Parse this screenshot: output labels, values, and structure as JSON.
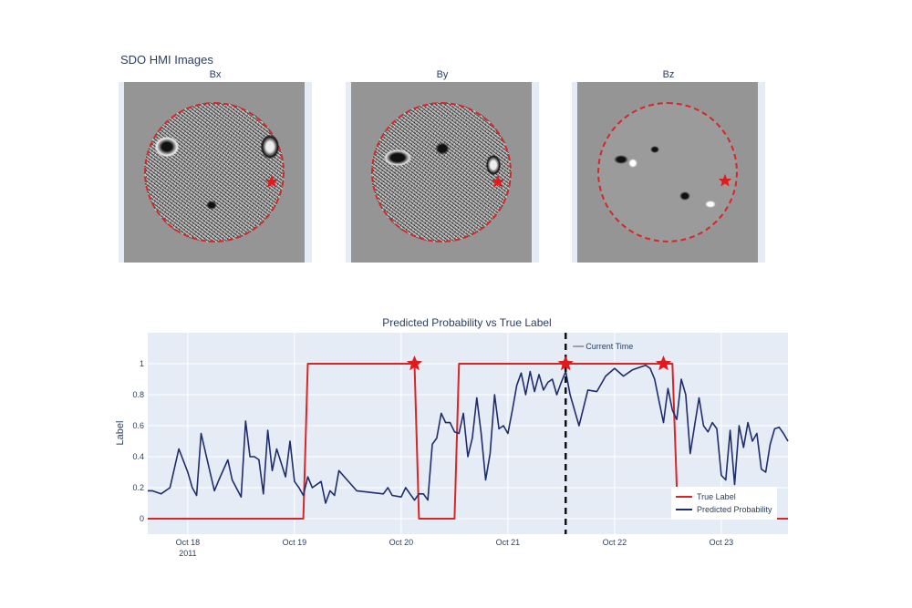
{
  "images_section": {
    "title": "SDO HMI Images",
    "panels": [
      {
        "title": "Bx",
        "style": "noisy"
      },
      {
        "title": "By",
        "style": "noisy"
      },
      {
        "title": "Bz",
        "style": "smooth"
      }
    ],
    "limb_circle_color": "#d62728",
    "marker_color": "#e31a1c"
  },
  "chart_data": {
    "type": "line",
    "title": "Predicted Probability vs True Label",
    "xlabel": "",
    "ylabel": "Label",
    "x_range": [
      "2011-10-17 15:00",
      "2011-10-23 15:00"
    ],
    "ylim": [
      -0.1,
      1.2
    ],
    "yticks": [
      0,
      0.2,
      0.4,
      0.6,
      0.8,
      1
    ],
    "ytick_labels": [
      "0",
      "0.2",
      "0.4",
      "0.6",
      "0.8",
      "1"
    ],
    "xticks": [
      "2011-10-18",
      "2011-10-19",
      "2011-10-20",
      "2011-10-21",
      "2011-10-22",
      "2011-10-23"
    ],
    "xtick_labels": [
      "Oct 18",
      "Oct 19",
      "Oct 20",
      "Oct 21",
      "Oct 22",
      "Oct 23"
    ],
    "xtick_sublabel": "2011",
    "grid": true,
    "legend_position": "bottom-right",
    "series": [
      {
        "name": "True Label",
        "color": "#d62728",
        "mode": "step",
        "x": [
          "2011-10-17 15:00",
          "2011-10-19 02:00",
          "2011-10-19 03:00",
          "2011-10-20 03:00",
          "2011-10-20 04:00",
          "2011-10-20 12:00",
          "2011-10-20 13:00",
          "2011-10-22 13:00",
          "2011-10-22 14:00",
          "2011-10-22 15:00",
          "2011-10-23 15:00"
        ],
        "values": [
          0,
          0,
          1,
          1,
          0,
          0,
          1,
          1,
          0.2,
          0,
          0
        ]
      },
      {
        "name": "Predicted Probability",
        "color": "#1f2d6b",
        "x": [
          "2011-10-17 15:00",
          "2011-10-17 16:00",
          "2011-10-17 18:00",
          "2011-10-17 20:00",
          "2011-10-17 22:00",
          "2011-10-18 00:00",
          "2011-10-18 01:00",
          "2011-10-18 02:00",
          "2011-10-18 03:00",
          "2011-10-18 05:00",
          "2011-10-18 06:00",
          "2011-10-18 07:00",
          "2011-10-18 09:00",
          "2011-10-18 10:00",
          "2011-10-18 12:00",
          "2011-10-18 13:00",
          "2011-10-18 14:00",
          "2011-10-18 15:00",
          "2011-10-18 16:00",
          "2011-10-18 17:00",
          "2011-10-18 18:00",
          "2011-10-18 19:00",
          "2011-10-18 20:00",
          "2011-10-18 22:00",
          "2011-10-18 23:00",
          "2011-10-19 00:00",
          "2011-10-19 01:00",
          "2011-10-19 02:00",
          "2011-10-19 03:00",
          "2011-10-19 04:00",
          "2011-10-19 06:00",
          "2011-10-19 07:00",
          "2011-10-19 08:00",
          "2011-10-19 09:00",
          "2011-10-19 10:00",
          "2011-10-19 14:00",
          "2011-10-19 20:00",
          "2011-10-19 21:00",
          "2011-10-19 22:00",
          "2011-10-20 00:00",
          "2011-10-20 01:00",
          "2011-10-20 02:00",
          "2011-10-20 03:00",
          "2011-10-20 04:00",
          "2011-10-20 05:00",
          "2011-10-20 06:00",
          "2011-10-20 07:00",
          "2011-10-20 08:00",
          "2011-10-20 09:00",
          "2011-10-20 10:00",
          "2011-10-20 11:00",
          "2011-10-20 12:00",
          "2011-10-20 13:00",
          "2011-10-20 14:00",
          "2011-10-20 15:00",
          "2011-10-20 16:00",
          "2011-10-20 17:00",
          "2011-10-20 18:00",
          "2011-10-20 19:00",
          "2011-10-20 20:00",
          "2011-10-20 21:00",
          "2011-10-20 22:00",
          "2011-10-20 23:00",
          "2011-10-21 00:00",
          "2011-10-21 01:00",
          "2011-10-21 02:00",
          "2011-10-21 03:00",
          "2011-10-21 04:00",
          "2011-10-21 05:00",
          "2011-10-21 06:00",
          "2011-10-21 07:00",
          "2011-10-21 08:00",
          "2011-10-21 09:00",
          "2011-10-21 10:00",
          "2011-10-21 11:00",
          "2011-10-21 12:00",
          "2011-10-21 13:00",
          "2011-10-21 14:00",
          "2011-10-21 16:00",
          "2011-10-21 18:00",
          "2011-10-21 20:00",
          "2011-10-21 22:00",
          "2011-10-22 00:00",
          "2011-10-22 02:00",
          "2011-10-22 04:00",
          "2011-10-22 06:00",
          "2011-10-22 07:00",
          "2011-10-22 08:00",
          "2011-10-22 09:00",
          "2011-10-22 10:00",
          "2011-10-22 11:00",
          "2011-10-22 12:00",
          "2011-10-22 13:00",
          "2011-10-22 14:00",
          "2011-10-22 15:00",
          "2011-10-22 16:00",
          "2011-10-22 17:00",
          "2011-10-22 18:00",
          "2011-10-22 19:00",
          "2011-10-22 20:00",
          "2011-10-22 21:00",
          "2011-10-22 22:00",
          "2011-10-22 23:00",
          "2011-10-23 00:00",
          "2011-10-23 01:00",
          "2011-10-23 02:00",
          "2011-10-23 03:00",
          "2011-10-23 04:00",
          "2011-10-23 05:00",
          "2011-10-23 06:00",
          "2011-10-23 07:00",
          "2011-10-23 08:00",
          "2011-10-23 09:00",
          "2011-10-23 10:00",
          "2011-10-23 11:00",
          "2011-10-23 12:00",
          "2011-10-23 13:00",
          "2011-10-23 14:00",
          "2011-10-23 15:00"
        ],
        "values": [
          0.18,
          0.18,
          0.16,
          0.2,
          0.45,
          0.3,
          0.2,
          0.15,
          0.55,
          0.3,
          0.18,
          0.25,
          0.38,
          0.25,
          0.14,
          0.63,
          0.4,
          0.4,
          0.38,
          0.16,
          0.57,
          0.31,
          0.45,
          0.27,
          0.5,
          0.24,
          0.2,
          0.15,
          0.27,
          0.2,
          0.24,
          0.1,
          0.18,
          0.15,
          0.31,
          0.18,
          0.16,
          0.2,
          0.15,
          0.14,
          0.2,
          0.16,
          0.12,
          0.16,
          0.16,
          0.12,
          0.48,
          0.52,
          0.68,
          0.62,
          0.62,
          0.56,
          0.55,
          0.68,
          0.4,
          0.52,
          0.78,
          0.55,
          0.25,
          0.42,
          0.8,
          0.58,
          0.6,
          0.55,
          0.7,
          0.86,
          0.94,
          0.8,
          0.95,
          0.82,
          0.93,
          0.83,
          0.88,
          0.9,
          0.8,
          0.88,
          0.95,
          0.8,
          0.6,
          0.83,
          0.82,
          0.92,
          0.97,
          0.92,
          0.96,
          0.98,
          0.99,
          0.97,
          0.9,
          0.76,
          0.62,
          0.84,
          0.7,
          0.64,
          0.9,
          0.8,
          0.42,
          0.6,
          0.78,
          0.6,
          0.56,
          0.62,
          0.58,
          0.28,
          0.25,
          0.57,
          0.22,
          0.6,
          0.46,
          0.62,
          0.5,
          0.55,
          0.32,
          0.3,
          0.48,
          0.58,
          0.59,
          0.55,
          0.5
        ],
        "x_note": "predicted series plotted as displayed"
      }
    ],
    "vertical_marker": {
      "x": "2011-10-21 13:00",
      "label": "Current Time",
      "color": "#111111",
      "style": "dashed"
    },
    "star_markers": [
      {
        "x": "2011-10-20 03:00",
        "y": 1
      },
      {
        "x": "2011-10-21 13:00",
        "y": 1
      },
      {
        "x": "2011-10-22 11:00",
        "y": 1
      }
    ]
  }
}
